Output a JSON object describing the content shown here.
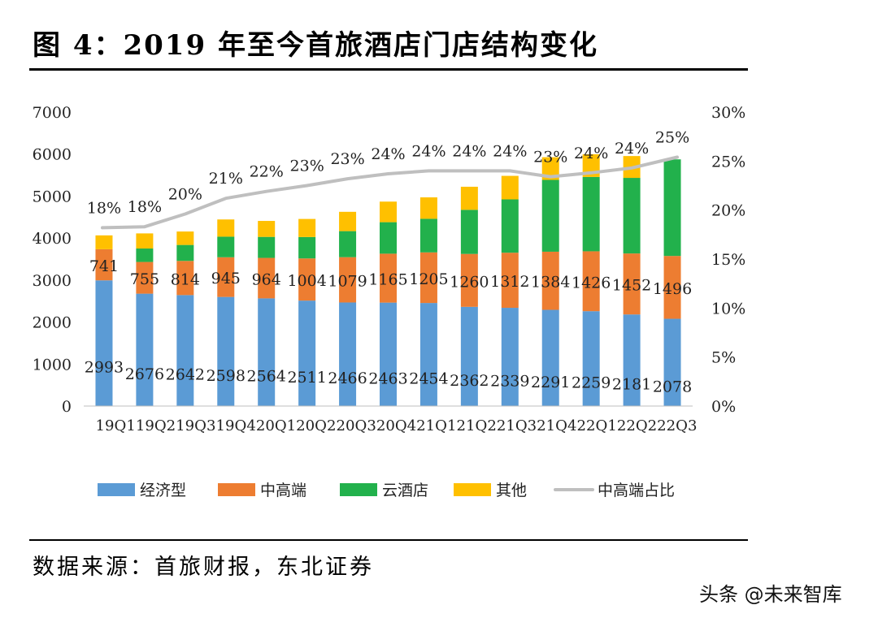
{
  "header": {
    "title": "图 4：2019 年至今首旅酒店门店结构变化"
  },
  "footer": {
    "source": "数据来源：首旅财报，东北证券",
    "watermark": "头条 @未来智库"
  },
  "chart_data": {
    "type": "bar",
    "stacked": true,
    "categories": [
      "19Q1",
      "19Q2",
      "19Q3",
      "19Q4",
      "20Q1",
      "20Q2",
      "20Q3",
      "20Q4",
      "21Q1",
      "21Q2",
      "21Q3",
      "21Q4",
      "22Q1",
      "22Q2",
      "22Q3"
    ],
    "category_labels_rendered": "19Q119Q219Q319Q420Q120Q220Q320Q421Q121Q221Q321Q422Q122Q222Q3",
    "series": [
      {
        "name": "经济型",
        "color": "#5B9BD5",
        "values": [
          2993,
          2676,
          2642,
          2598,
          2564,
          2511,
          2466,
          2463,
          2454,
          2362,
          2339,
          2291,
          2259,
          2181,
          2078
        ]
      },
      {
        "name": "中高端",
        "color": "#ED7D31",
        "values": [
          741,
          755,
          814,
          945,
          964,
          1004,
          1079,
          1165,
          1205,
          1260,
          1312,
          1384,
          1426,
          1452,
          1496
        ]
      },
      {
        "name": "云酒店",
        "color": "#22B14C",
        "values": [
          0,
          320,
          380,
          490,
          500,
          510,
          620,
          750,
          800,
          1050,
          1270,
          1710,
          1770,
          1800,
          2300
        ]
      },
      {
        "name": "其他",
        "color": "#FFC000",
        "values": [
          330,
          360,
          320,
          410,
          380,
          430,
          460,
          490,
          510,
          550,
          560,
          540,
          540,
          520,
          0
        ]
      }
    ],
    "line_series": {
      "name": "中高端占比",
      "color": "#BFBFBF",
      "axis": "right",
      "values": [
        18,
        18,
        20,
        21,
        22,
        23,
        23,
        24,
        24,
        24,
        24,
        23,
        24,
        24,
        25
      ],
      "labels": [
        "18%",
        "18%",
        "20%",
        "21%",
        "22%",
        "23%",
        "23%",
        "24%",
        "24%",
        "24%",
        "24%",
        "23%",
        "24%",
        "24%",
        "25%"
      ],
      "plot_values": [
        18.2,
        18.3,
        19.6,
        21.2,
        21.9,
        22.5,
        23.2,
        23.7,
        24.0,
        24.0,
        24.0,
        23.4,
        23.8,
        24.3,
        25.4
      ]
    },
    "y_left": {
      "min": 0,
      "max": 7000,
      "ticks": [
        "0",
        "1000",
        "2000",
        "3000",
        "4000",
        "5000",
        "6000",
        "7000"
      ]
    },
    "y_right": {
      "min": 0,
      "max": 30,
      "ticks": [
        "0%",
        "5%",
        "10%",
        "15%",
        "20%",
        "25%",
        "30%"
      ]
    },
    "legend": {
      "position": "bottom",
      "items": [
        "经济型",
        "中高端",
        "云酒店",
        "其他",
        "中高端占比"
      ]
    },
    "grid": false
  }
}
